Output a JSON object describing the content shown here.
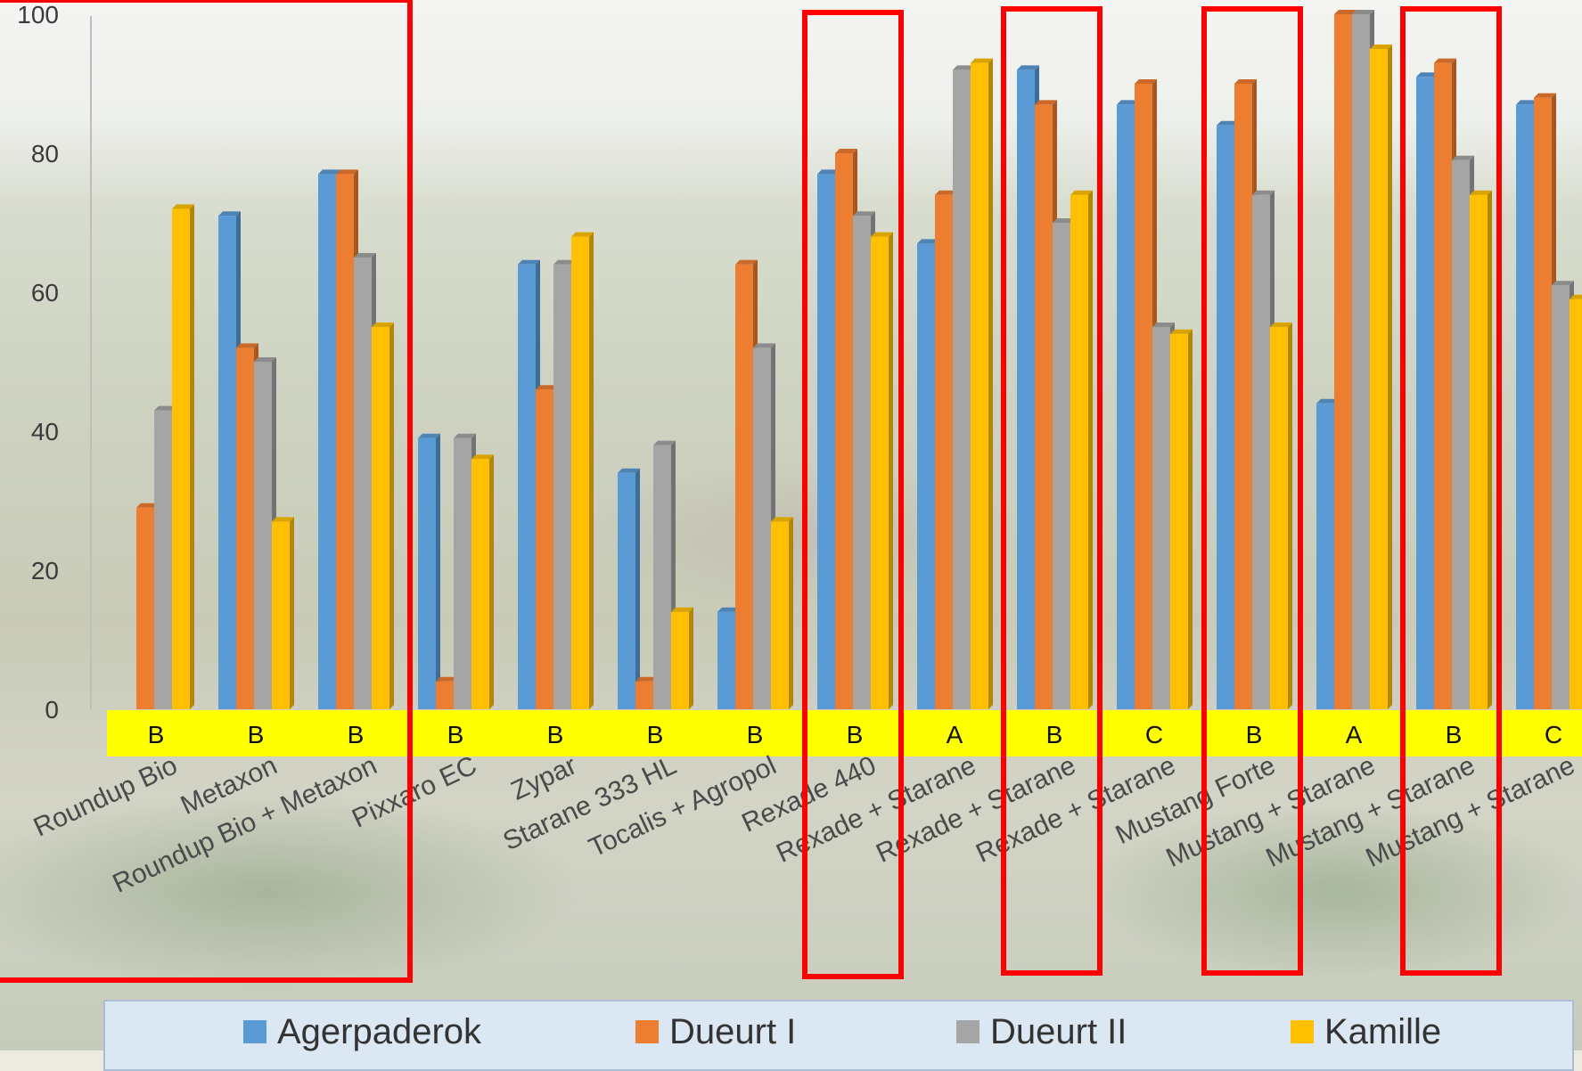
{
  "chart_data": {
    "type": "bar",
    "ylim": [
      0,
      100
    ],
    "yticks": [
      0,
      20,
      40,
      60,
      80,
      100
    ],
    "categories": [
      "Roundup Bio",
      "Metaxon",
      "Roundup Bio + Metaxon",
      "Pixxaro EC",
      "Zypar",
      "Starane 333 HL",
      "Tocalis + Agropol",
      "Rexade 440",
      "Rexade + Starane",
      "Rexade + Starane",
      "Rexade + Starane",
      "Mustang Forte",
      "Mustang + Starane",
      "Mustang + Starane",
      "Mustang + Starane"
    ],
    "grades": [
      "B",
      "B",
      "B",
      "B",
      "B",
      "B",
      "B",
      "B",
      "A",
      "B",
      "C",
      "B",
      "A",
      "B",
      "C"
    ],
    "series": [
      {
        "name": "Agerpaderok",
        "color": "#5b9bd5",
        "values": [
          0,
          71,
          77,
          39,
          64,
          34,
          14,
          77,
          67,
          92,
          87,
          84,
          44,
          91,
          87
        ]
      },
      {
        "name": "Dueurt I",
        "color": "#ed7d31",
        "values": [
          29,
          52,
          77,
          4,
          46,
          4,
          64,
          80,
          74,
          87,
          90,
          90,
          100,
          93,
          88
        ]
      },
      {
        "name": "Dueurt II",
        "color": "#a5a5a5",
        "values": [
          43,
          50,
          65,
          39,
          64,
          38,
          52,
          71,
          92,
          70,
          55,
          74,
          100,
          79,
          61
        ]
      },
      {
        "name": "Kamille",
        "color": "#ffc000",
        "values": [
          72,
          27,
          55,
          36,
          68,
          14,
          27,
          68,
          93,
          74,
          54,
          55,
          95,
          74,
          59
        ]
      }
    ],
    "highlight_color": "#ff0000",
    "grade_band_color": "#ffff00"
  }
}
